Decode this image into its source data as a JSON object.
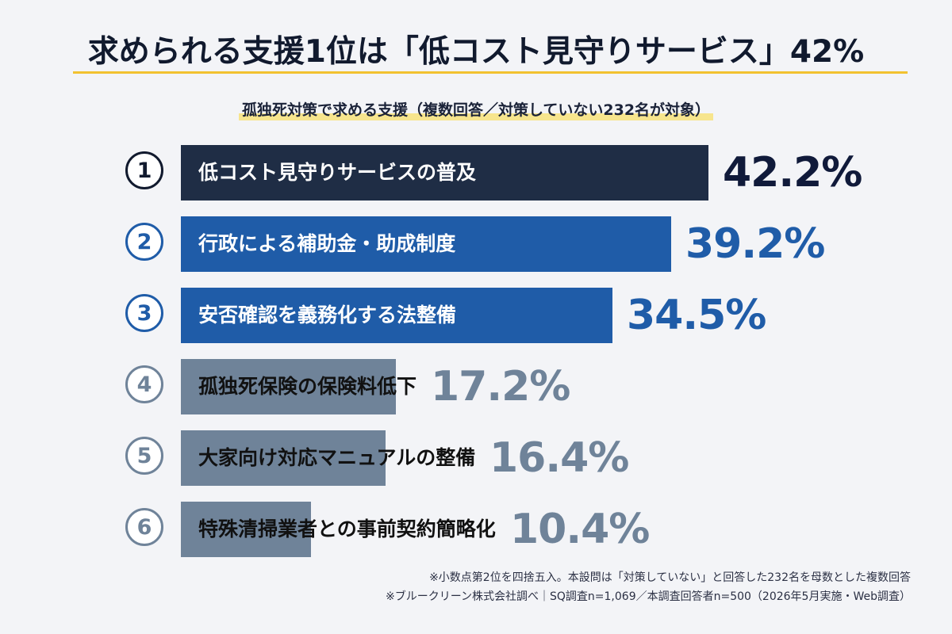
{
  "title": "求められる支援1位は「低コスト見守りサービス」42%",
  "subtitle": "孤独死対策で求める支援（複数回答／対策していない232名が対象）",
  "chart_data": {
    "type": "bar",
    "orientation": "horizontal",
    "categories": [
      "低コスト見守りサービスの普及",
      "行政による補助金・助成制度",
      "安否確認を義務化する法整備",
      "孤独死保険の保険料低下",
      "大家向け対応マニュアルの整備",
      "特殊清掃業者との事前契約簡略化"
    ],
    "ranks": [
      "①",
      "②",
      "③",
      "④",
      "⑤",
      "⑥"
    ],
    "values": [
      42.2,
      39.2,
      34.5,
      17.2,
      16.4,
      10.4
    ],
    "value_labels": [
      "42.2%",
      "39.2%",
      "34.5%",
      "17.2%",
      "16.4%",
      "10.4%"
    ],
    "unit": "%",
    "xlim": [
      0,
      45
    ],
    "grid": false,
    "colors": {
      "bars": [
        "#1f2d45",
        "#1f5ca8",
        "#1f5ca8",
        "#6f8399",
        "#6f8399",
        "#6f8399"
      ],
      "values": [
        "#101a3a",
        "#1f5ca8",
        "#1f5ca8",
        "#6f8399",
        "#6f8399",
        "#6f8399"
      ],
      "labels": [
        "#ffffff",
        "#ffffff",
        "#ffffff",
        "#111111",
        "#111111",
        "#111111"
      ],
      "badges": [
        "#111a2e",
        "#1f5ca8",
        "#1f5ca8",
        "#6f8399",
        "#6f8399",
        "#6f8399"
      ]
    }
  },
  "footnotes": [
    "※小数点第2位を四捨五入。本設問は「対策していない」と回答した232名を母数とした複数回答",
    "※ブルークリーン株式会社調べ｜SQ調査n=1,069／本調査回答者n=500（2026年5月実施・Web調査）"
  ],
  "colors": {
    "accent_underline": "#f2c230",
    "subtitle_highlight": "#f7e27a",
    "background": "#f3f4f7"
  }
}
